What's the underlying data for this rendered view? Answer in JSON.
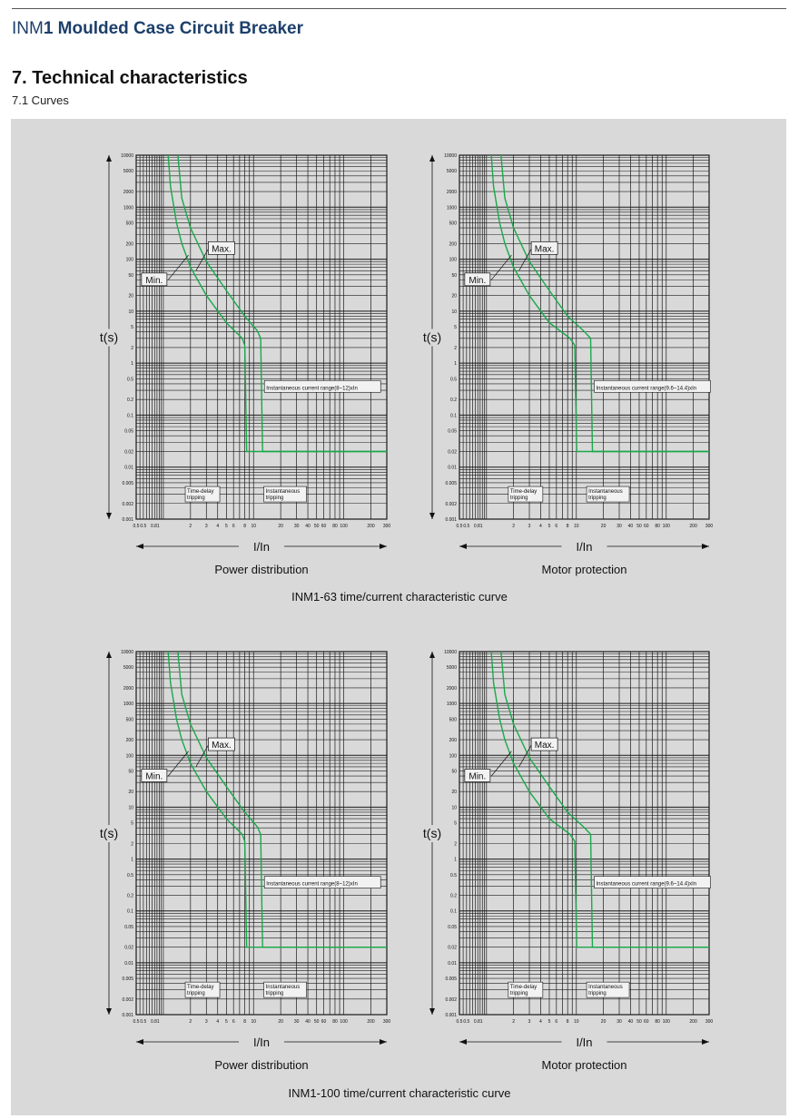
{
  "header": {
    "title_prefix": "INM",
    "title_rest": "1 Moulded Case Circuit Breaker",
    "section": "7. Technical characteristics",
    "subsection": "7.1 Curves"
  },
  "colors": {
    "panel": "#d9d9d9",
    "grid": "#1a1a1a",
    "curve": "#1aa84a",
    "title": "#1d3f6b"
  },
  "common": {
    "ylabel": "t(s)",
    "xlabel": "I/In",
    "y_ticks": [
      "10000",
      "5000",
      "2000",
      "1000",
      "500",
      "200",
      "100",
      "50",
      "20",
      "10",
      "5",
      "2",
      "1",
      "0.5",
      "0.2",
      "0.1",
      "0.05",
      "0.02",
      "0.01",
      "0.005",
      "0.002",
      "0.001"
    ],
    "x_ticks": [
      "0.5",
      "0.5",
      "0.81",
      "2",
      "3",
      "4",
      "5",
      "6",
      "8",
      "10",
      "20",
      "30",
      "40",
      "50",
      "60",
      "80",
      "100",
      "200",
      "300"
    ],
    "min_label": "Min.",
    "max_label": "Max.",
    "time_delay_label": [
      "Time-delay",
      "tripping"
    ],
    "instantaneous_label": [
      "Instantaneous",
      "tripping"
    ]
  },
  "groups": [
    {
      "caption": "INM1-63 time/current characteristic curve"
    },
    {
      "caption": "INM1-100 time/current characteristic curve"
    }
  ],
  "chart_data": [
    {
      "type": "line",
      "caption": "Power distribution",
      "xlabel": "I/In",
      "ylabel": "t(s)",
      "xscale": "log",
      "yscale": "log",
      "xlim": [
        0.5,
        300
      ],
      "ylim": [
        0.001,
        10000
      ],
      "grid": true,
      "annotation": "Instantaneous current range(8~12)xIn",
      "series": [
        {
          "name": "Min.",
          "x": [
            1.13,
            1.2,
            1.4,
            1.6,
            2,
            3,
            5,
            7.5,
            8,
            8.4,
            300
          ],
          "y": [
            10000,
            2500,
            500,
            200,
            70,
            20,
            6,
            3,
            2.2,
            0.02,
            0.02
          ]
        },
        {
          "name": "Max.",
          "x": [
            1.45,
            1.6,
            2,
            3,
            5,
            8,
            11,
            12,
            12.6,
            300
          ],
          "y": [
            10000,
            1500,
            400,
            90,
            25,
            8,
            4.2,
            3,
            0.02,
            0.02
          ]
        }
      ]
    },
    {
      "type": "line",
      "caption": "Motor protection",
      "xlabel": "I/In",
      "ylabel": "t(s)",
      "xscale": "log",
      "yscale": "log",
      "xlim": [
        0.5,
        300
      ],
      "ylim": [
        0.001,
        10000
      ],
      "grid": true,
      "annotation": "Instantaneous current range(9.6~14.4)xIn",
      "series": [
        {
          "name": "Min.",
          "x": [
            1.13,
            1.2,
            1.4,
            1.6,
            2,
            3,
            5,
            8.5,
            9.6,
            10.1,
            300
          ],
          "y": [
            10000,
            2500,
            500,
            200,
            70,
            20,
            6,
            3,
            2.2,
            0.02,
            0.02
          ]
        },
        {
          "name": "Max.",
          "x": [
            1.45,
            1.6,
            2,
            3,
            5,
            8,
            12,
            14.4,
            15.1,
            300
          ],
          "y": [
            10000,
            1500,
            400,
            90,
            25,
            8,
            4.2,
            3,
            0.02,
            0.02
          ]
        }
      ]
    },
    {
      "type": "line",
      "caption": "Power distribution",
      "xlabel": "I/In",
      "ylabel": "t(s)",
      "xscale": "log",
      "yscale": "log",
      "xlim": [
        0.5,
        300
      ],
      "ylim": [
        0.001,
        10000
      ],
      "grid": true,
      "annotation": "Instantaneous current range(8~12)xIn",
      "series": [
        {
          "name": "Min.",
          "x": [
            1.13,
            1.2,
            1.4,
            1.6,
            2,
            3,
            5,
            7.5,
            8,
            8.4,
            300
          ],
          "y": [
            10000,
            2500,
            500,
            200,
            70,
            20,
            6,
            3,
            2.2,
            0.02,
            0.02
          ]
        },
        {
          "name": "Max.",
          "x": [
            1.45,
            1.6,
            2,
            3,
            5,
            8,
            11,
            12,
            12.6,
            300
          ],
          "y": [
            10000,
            1500,
            400,
            90,
            25,
            8,
            4.2,
            3,
            0.02,
            0.02
          ]
        }
      ]
    },
    {
      "type": "line",
      "caption": "Motor protection",
      "xlabel": "I/In",
      "ylabel": "t(s)",
      "xscale": "log",
      "yscale": "log",
      "xlim": [
        0.5,
        300
      ],
      "ylim": [
        0.001,
        10000
      ],
      "grid": true,
      "annotation": "Instantaneous current range(9.6~14.4)xIn",
      "series": [
        {
          "name": "Min.",
          "x": [
            1.13,
            1.2,
            1.4,
            1.6,
            2,
            3,
            5,
            8.5,
            9.6,
            10.1,
            300
          ],
          "y": [
            10000,
            2500,
            500,
            200,
            70,
            20,
            6,
            3,
            2.2,
            0.02,
            0.02
          ]
        },
        {
          "name": "Max.",
          "x": [
            1.45,
            1.6,
            2,
            3,
            5,
            8,
            12,
            14.4,
            15.1,
            300
          ],
          "y": [
            10000,
            1500,
            400,
            90,
            25,
            8,
            4.2,
            3,
            0.02,
            0.02
          ]
        }
      ]
    }
  ]
}
